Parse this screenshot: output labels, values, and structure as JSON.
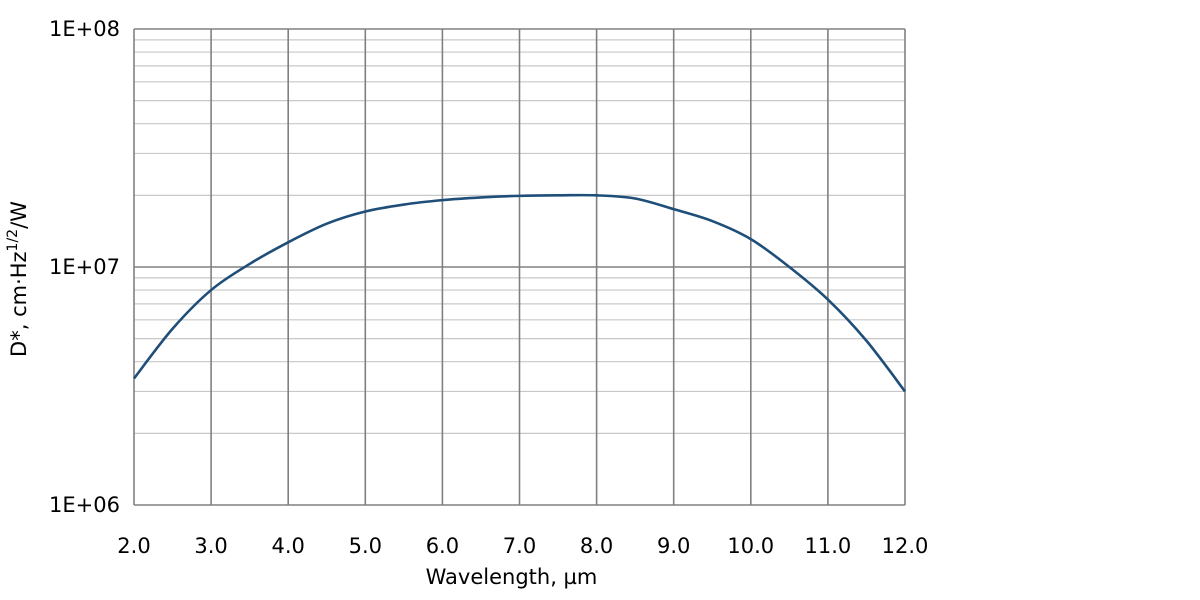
{
  "chart_data": {
    "type": "line",
    "xlabel": "Wavelength, µm",
    "ylabel": {
      "base": "D*, cm·Hz",
      "superscript": "1/2",
      "suffix": "/W"
    },
    "x_ticks": [
      "2.0",
      "3.0",
      "4.0",
      "5.0",
      "6.0",
      "7.0",
      "8.0",
      "9.0",
      "10.0",
      "11.0",
      "12.0"
    ],
    "y_ticks": [
      "1E+06",
      "1E+07",
      "1E+08"
    ],
    "xlim": [
      2.0,
      12.0
    ],
    "ylim": [
      1000000,
      100000000
    ],
    "y_scale": "log",
    "grid": true,
    "line_color": "#1f4e79",
    "grid_color": "#808080",
    "minor_grid_color": "#c8c8c8",
    "series": [
      {
        "x": [
          2.0,
          2.5,
          3.0,
          3.5,
          4.0,
          4.5,
          5.0,
          5.5,
          6.0,
          6.5,
          7.0,
          7.5,
          8.0,
          8.5,
          9.0,
          9.5,
          10.0,
          10.5,
          11.0,
          11.5,
          12.0
        ],
        "values": [
          3400000,
          5500000,
          8000000,
          10300000,
          12700000,
          15200000,
          17100000,
          18300000,
          19100000,
          19600000,
          19900000,
          20000000,
          20000000,
          19400000,
          17500000,
          15600000,
          13100000,
          10000000,
          7300000,
          4900000,
          3000000
        ]
      }
    ]
  }
}
